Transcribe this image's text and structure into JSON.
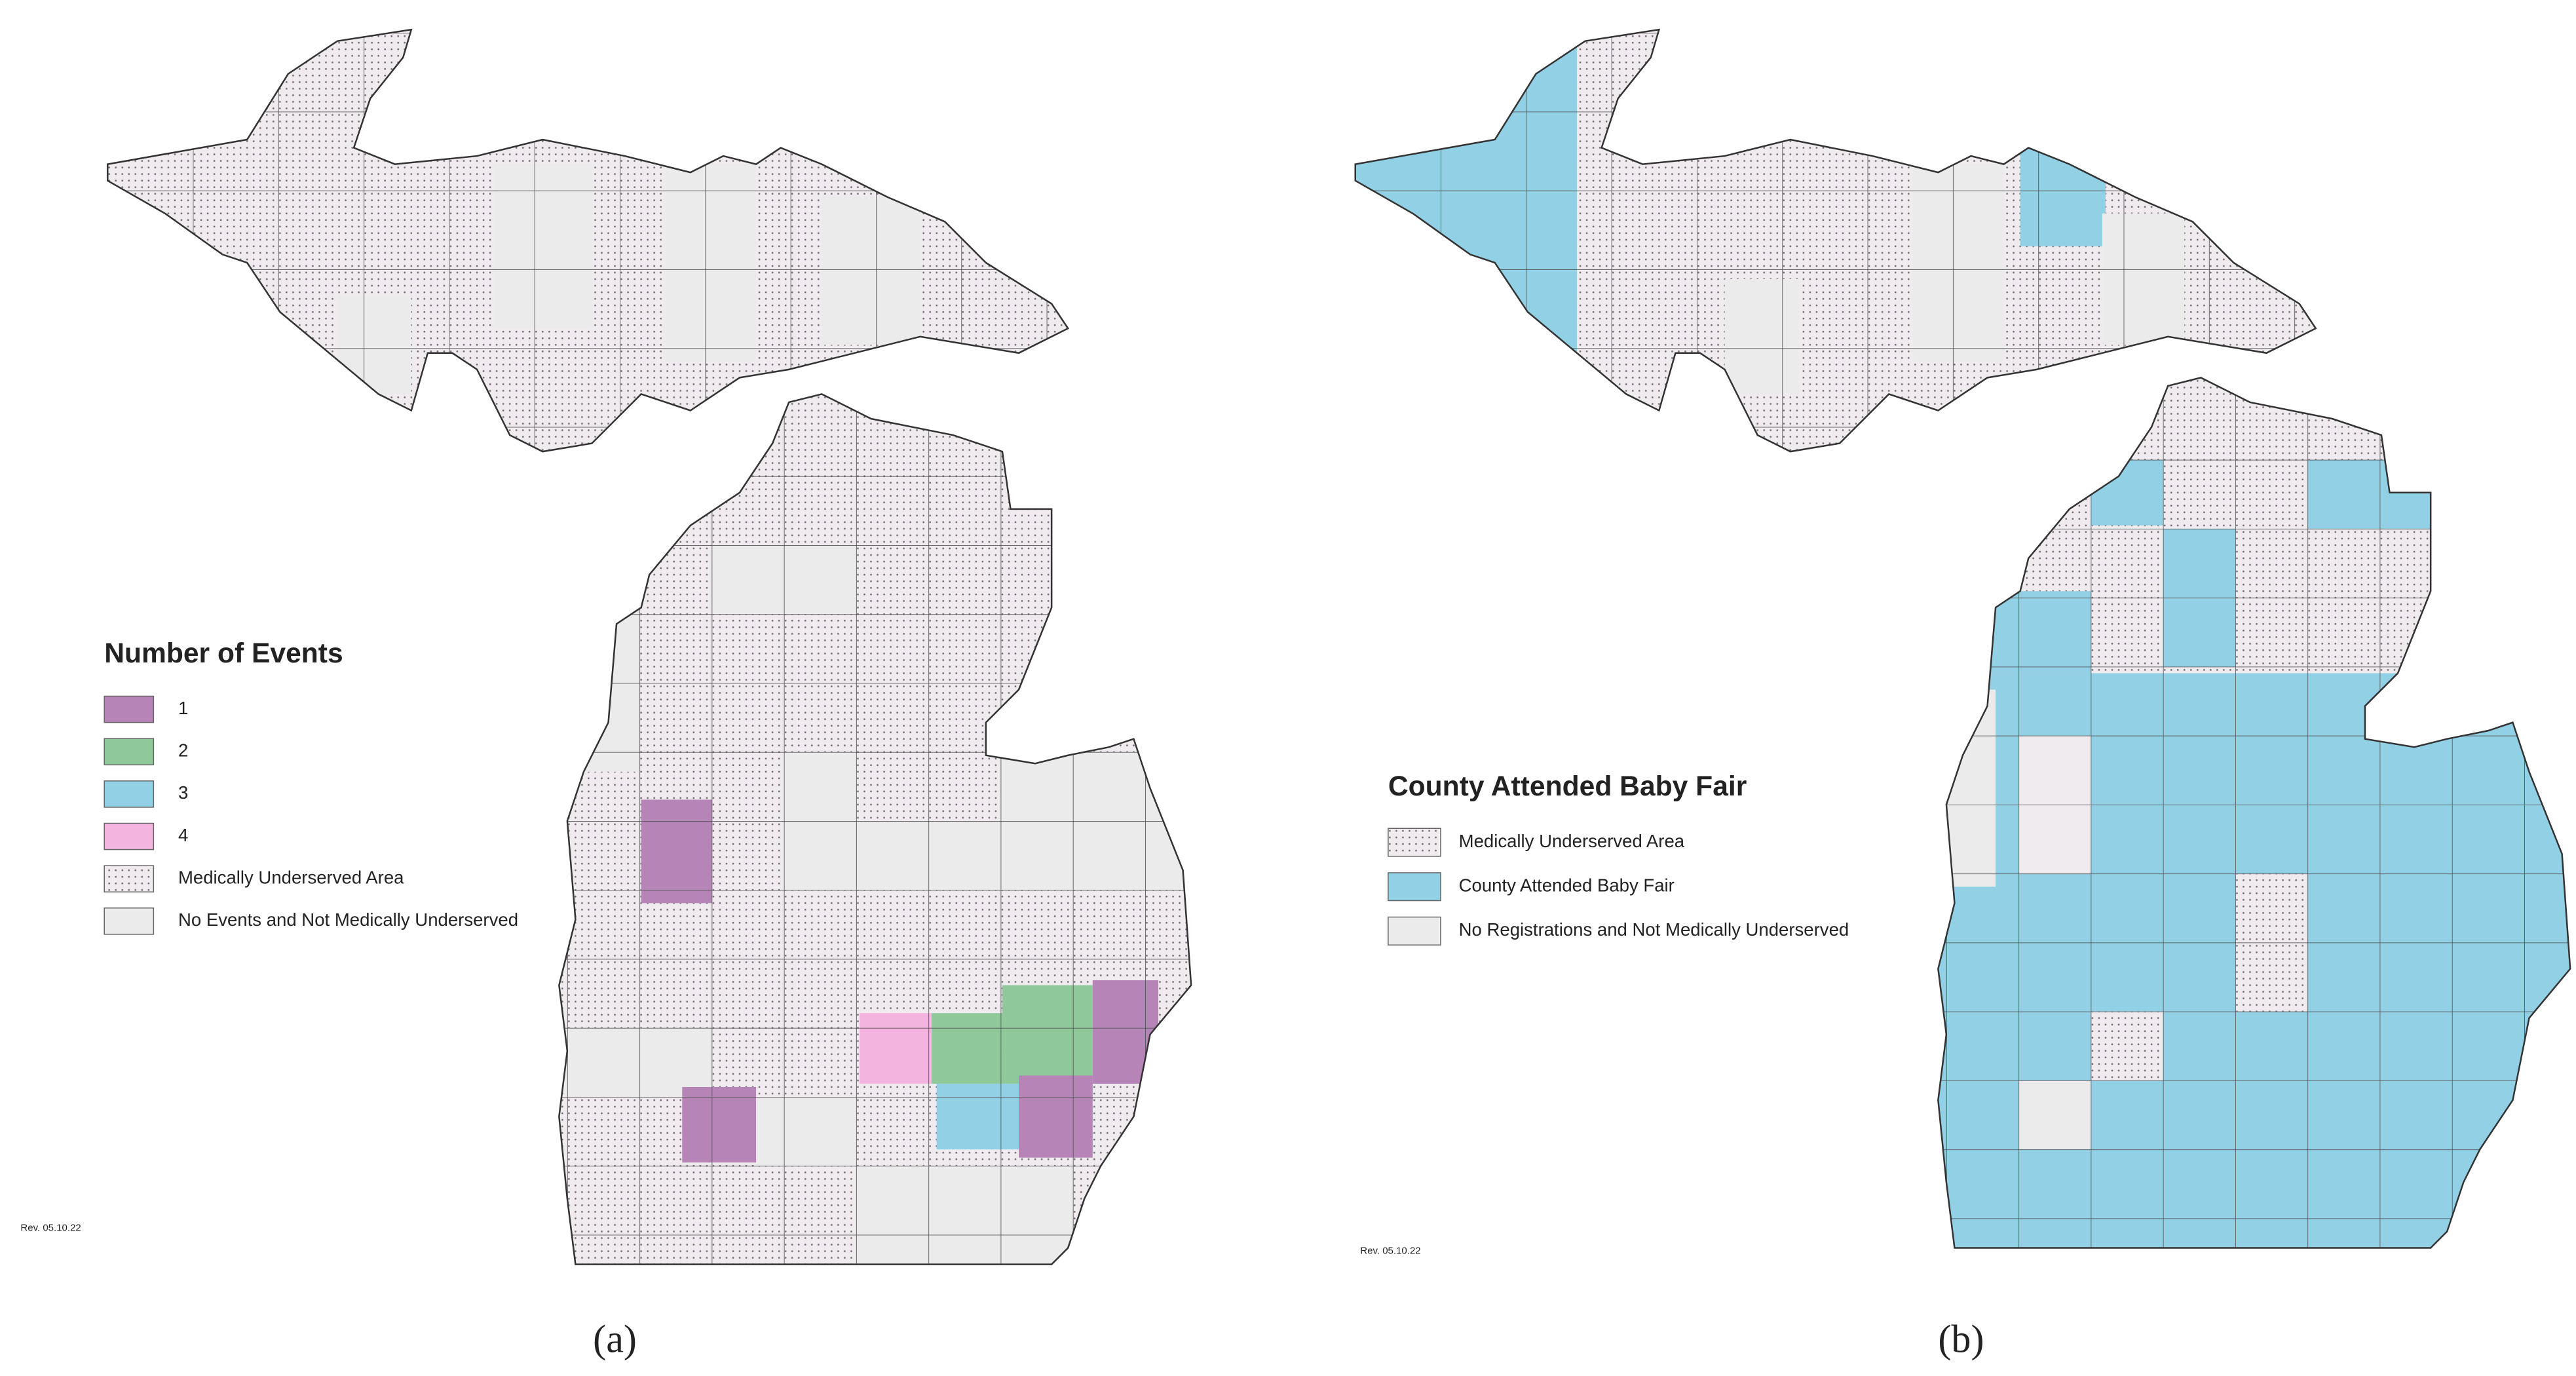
{
  "panels": [
    {
      "legend": {
        "title": "Number of Events",
        "items": [
          {
            "label": "1",
            "color": "#b784b7"
          },
          {
            "label": "2",
            "color": "#8fc99a"
          },
          {
            "label": "3",
            "color": "#92d0e6"
          },
          {
            "label": "4",
            "color": "#f4b4e0"
          },
          {
            "label": "Medically Underserved Area",
            "color": "dots"
          },
          {
            "label": "No Events and Not Medically Underserved",
            "color": "#ebebeb"
          }
        ]
      },
      "revision": "Rev. 05.10.22",
      "caption": "(a)"
    },
    {
      "legend": {
        "title": "County Attended Baby Fair",
        "items": [
          {
            "label": "Medically Underserved Area",
            "color": "dots"
          },
          {
            "label": "County Attended Baby Fair",
            "color": "#92d0e6"
          },
          {
            "label": "No Registrations and Not Medically Underserved",
            "color": "#ebebeb"
          }
        ]
      },
      "revision": "Rev. 05.10.22",
      "caption": "(b)"
    }
  ]
}
